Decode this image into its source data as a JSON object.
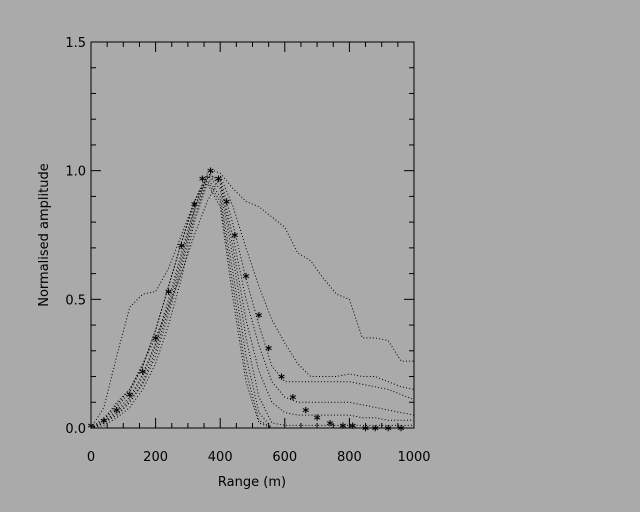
{
  "chart_data": {
    "type": "line",
    "xlabel": "Range (m)",
    "ylabel": "Normalised amplitude",
    "xlim": [
      0,
      1000
    ],
    "ylim": [
      0,
      1.5
    ],
    "x_ticks": [
      0,
      200,
      400,
      600,
      800,
      1000
    ],
    "x_tick_labels": [
      "0",
      "200",
      "400",
      "600",
      "800",
      "1000"
    ],
    "y_ticks": [
      0.0,
      0.5,
      1.0,
      1.5
    ],
    "y_tick_labels": [
      "0.0",
      "0.5",
      "1.0",
      "1.5"
    ],
    "grid": false,
    "series": [
      {
        "style": "dotted",
        "x": [
          0,
          40,
          80,
          120,
          160,
          200,
          240,
          280,
          320,
          360,
          380,
          400,
          440,
          480,
          520,
          560,
          600,
          640,
          680,
          720,
          760,
          800,
          840,
          880,
          920,
          960,
          1000
        ],
        "y": [
          0.0,
          0.08,
          0.28,
          0.47,
          0.52,
          0.53,
          0.62,
          0.75,
          0.88,
          0.97,
          1.0,
          0.99,
          0.93,
          0.88,
          0.86,
          0.82,
          0.78,
          0.68,
          0.65,
          0.58,
          0.52,
          0.5,
          0.35,
          0.35,
          0.34,
          0.26,
          0.26
        ]
      },
      {
        "style": "dotted",
        "x": [
          0,
          40,
          80,
          120,
          160,
          200,
          240,
          280,
          320,
          360,
          400,
          440,
          480,
          520,
          560,
          600,
          640,
          680,
          720,
          760,
          800,
          840,
          880,
          920,
          960,
          1000
        ],
        "y": [
          0.0,
          0.03,
          0.1,
          0.15,
          0.25,
          0.35,
          0.47,
          0.6,
          0.75,
          0.88,
          0.98,
          0.86,
          0.7,
          0.55,
          0.42,
          0.33,
          0.25,
          0.2,
          0.2,
          0.2,
          0.21,
          0.2,
          0.2,
          0.18,
          0.16,
          0.15
        ]
      },
      {
        "style": "dotted",
        "x": [
          0,
          40,
          80,
          120,
          160,
          200,
          240,
          280,
          320,
          360,
          400,
          440,
          480,
          520,
          560,
          600,
          640,
          680,
          720,
          760,
          800,
          840,
          880,
          920,
          960,
          1000
        ],
        "y": [
          0.0,
          0.04,
          0.09,
          0.15,
          0.24,
          0.38,
          0.55,
          0.72,
          0.88,
          0.98,
          0.97,
          0.79,
          0.58,
          0.4,
          0.24,
          0.18,
          0.18,
          0.18,
          0.18,
          0.18,
          0.18,
          0.17,
          0.16,
          0.15,
          0.13,
          0.11
        ]
      },
      {
        "style": "dotted",
        "x": [
          0,
          40,
          80,
          120,
          160,
          200,
          240,
          280,
          320,
          360,
          400,
          440,
          480,
          520,
          560,
          600,
          640,
          680,
          720,
          760,
          800,
          840,
          880,
          920,
          960,
          1000
        ],
        "y": [
          0.0,
          0.03,
          0.08,
          0.14,
          0.24,
          0.38,
          0.55,
          0.72,
          0.88,
          0.99,
          0.96,
          0.74,
          0.5,
          0.32,
          0.18,
          0.12,
          0.1,
          0.1,
          0.1,
          0.1,
          0.1,
          0.09,
          0.08,
          0.07,
          0.06,
          0.05
        ]
      },
      {
        "style": "dotted",
        "x": [
          0,
          40,
          80,
          120,
          160,
          200,
          240,
          280,
          320,
          360,
          400,
          440,
          480,
          520,
          560,
          600,
          640,
          680,
          720,
          760,
          800,
          840,
          880,
          920,
          960,
          1000
        ],
        "y": [
          0.0,
          0.02,
          0.07,
          0.12,
          0.21,
          0.33,
          0.5,
          0.68,
          0.86,
          0.98,
          0.95,
          0.7,
          0.42,
          0.22,
          0.1,
          0.06,
          0.05,
          0.05,
          0.05,
          0.05,
          0.05,
          0.04,
          0.04,
          0.03,
          0.03,
          0.03
        ]
      },
      {
        "style": "dotted",
        "x": [
          0,
          40,
          80,
          120,
          160,
          200,
          240,
          280,
          320,
          360,
          400,
          440,
          480,
          520,
          560,
          600,
          640,
          680,
          720,
          760,
          800,
          840,
          880,
          920,
          960,
          1000
        ],
        "y": [
          0.0,
          0.02,
          0.06,
          0.11,
          0.2,
          0.32,
          0.48,
          0.66,
          0.85,
          0.98,
          0.93,
          0.66,
          0.35,
          0.12,
          0.02,
          0.01,
          0.01,
          0.01,
          0.01,
          0.01,
          0.01,
          0.01,
          0.01,
          0.01,
          0.01,
          0.01
        ]
      },
      {
        "style": "dotted",
        "x": [
          0,
          40,
          80,
          120,
          160,
          200,
          240,
          280,
          320,
          360,
          400,
          440,
          480,
          520,
          560,
          600,
          640,
          680,
          720,
          760,
          800,
          840,
          880,
          920,
          960,
          1000
        ],
        "y": [
          0.0,
          0.02,
          0.05,
          0.1,
          0.18,
          0.3,
          0.46,
          0.64,
          0.84,
          0.97,
          0.9,
          0.6,
          0.28,
          0.06,
          0.0,
          0.0,
          0.0,
          0.0,
          0.0,
          0.0,
          0.0,
          0.0,
          0.0,
          0.0,
          0.0,
          0.0
        ]
      },
      {
        "style": "dotted",
        "x": [
          0,
          40,
          80,
          120,
          160,
          200,
          240,
          280,
          320,
          360,
          400,
          440,
          480,
          520,
          560,
          600,
          640,
          680,
          720,
          760,
          800,
          840,
          880,
          920,
          960,
          1000
        ],
        "y": [
          0.0,
          0.02,
          0.05,
          0.1,
          0.17,
          0.28,
          0.44,
          0.62,
          0.82,
          0.96,
          0.88,
          0.55,
          0.22,
          0.03,
          0.0,
          0.0,
          0.0,
          0.0,
          0.0,
          0.0,
          0.0,
          0.0,
          0.0,
          0.0,
          0.0,
          0.0
        ]
      },
      {
        "style": "dotted",
        "x": [
          0,
          40,
          80,
          120,
          160,
          200,
          240,
          280,
          320,
          360,
          400,
          440,
          480,
          520,
          560,
          600,
          640,
          680,
          720,
          760,
          800,
          840,
          880,
          920,
          960,
          1000
        ],
        "y": [
          0.0,
          0.01,
          0.04,
          0.08,
          0.15,
          0.25,
          0.4,
          0.58,
          0.8,
          0.95,
          0.86,
          0.5,
          0.18,
          0.02,
          0.0,
          0.0,
          0.0,
          0.0,
          0.0,
          0.0,
          0.0,
          0.0,
          0.0,
          0.0,
          0.0,
          0.0
        ]
      },
      {
        "style": "asterisk",
        "x": [
          0,
          40,
          80,
          120,
          160,
          200,
          240,
          280,
          320,
          345,
          370,
          395,
          420,
          445,
          480,
          520,
          550,
          590,
          625,
          665,
          700,
          740,
          780,
          810,
          850,
          880,
          920,
          960
        ],
        "y": [
          0.01,
          0.03,
          0.07,
          0.13,
          0.22,
          0.35,
          0.53,
          0.71,
          0.87,
          0.97,
          1.0,
          0.97,
          0.88,
          0.75,
          0.59,
          0.44,
          0.31,
          0.2,
          0.12,
          0.07,
          0.04,
          0.02,
          0.01,
          0.01,
          0.0,
          0.0,
          0.0,
          0.0
        ]
      }
    ]
  }
}
